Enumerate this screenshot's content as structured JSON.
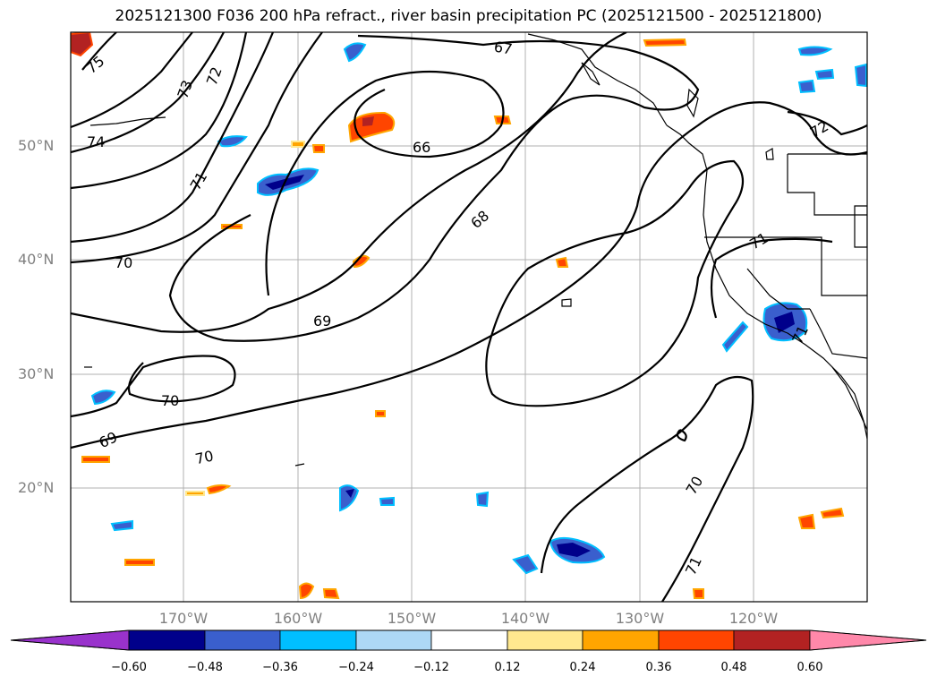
{
  "title": "2025121300 F036 200 hPa refract., river basin precipitation PC (2025121500 - 2025121800)",
  "lat_labels": [
    "50°N",
    "40°N",
    "30°N",
    "20°N"
  ],
  "lon_labels": [
    "170°W",
    "160°W",
    "150°W",
    "140°W",
    "130°W",
    "120°W"
  ],
  "contour_labels": [
    "75",
    "74",
    "73",
    "72",
    "71",
    "70",
    "69",
    "68",
    "67",
    "66",
    "70",
    "70",
    "69",
    "71",
    "71",
    "70",
    "71",
    "72"
  ],
  "colorbar": {
    "ticks": [
      "−0.60",
      "−0.48",
      "−0.36",
      "−0.24",
      "−0.12",
      "0.12",
      "0.24",
      "0.36",
      "0.48",
      "0.60"
    ],
    "colors": [
      "#9932cc",
      "#00008b",
      "#3a5fcd",
      "#00bfff",
      "#add8f6",
      "#ffffff",
      "#ffe88f",
      "#ffa500",
      "#ff4500",
      "#b22222",
      "#ff88aa"
    ]
  }
}
